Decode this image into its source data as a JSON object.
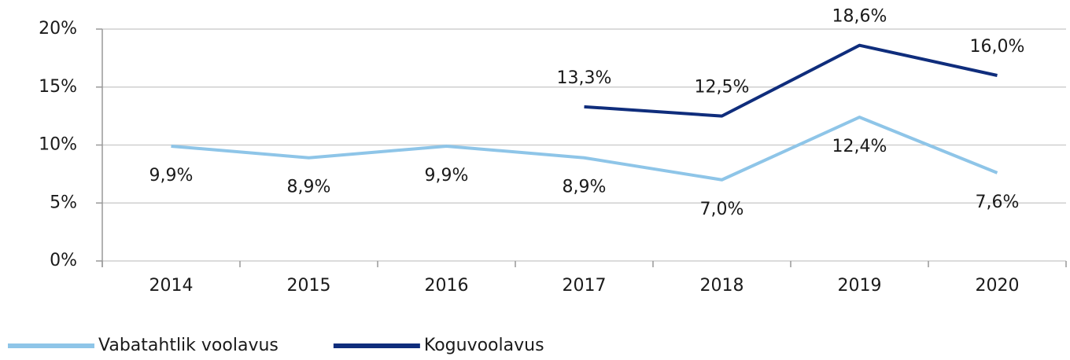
{
  "chart_data": {
    "type": "line",
    "categories": [
      "2014",
      "2015",
      "2016",
      "2017",
      "2018",
      "2019",
      "2020"
    ],
    "series": [
      {
        "name": "Vabatahtlik voolavus",
        "color": "#8ec5e8",
        "values": [
          9.9,
          8.9,
          9.9,
          8.9,
          7.0,
          12.4,
          7.6
        ],
        "value_labels": [
          "9,9%",
          "8,9%",
          "9,9%",
          "8,9%",
          "7,0%",
          "12,4%",
          "7,6%"
        ]
      },
      {
        "name": "Koguvoolavus",
        "color": "#0f2d7c",
        "values": [
          null,
          null,
          null,
          13.3,
          12.5,
          18.6,
          16.0
        ],
        "value_labels": [
          null,
          null,
          null,
          "13,3%",
          "12,5%",
          "18,6%",
          "16,0%"
        ]
      }
    ],
    "ylim": [
      0,
      20
    ],
    "yticks": [
      {
        "value": 0,
        "label": "0%"
      },
      {
        "value": 5,
        "label": "5%"
      },
      {
        "value": 10,
        "label": "10%"
      },
      {
        "value": 15,
        "label": "15%"
      },
      {
        "value": 20,
        "label": "20%"
      }
    ],
    "grid": true,
    "legend": "bottom"
  }
}
